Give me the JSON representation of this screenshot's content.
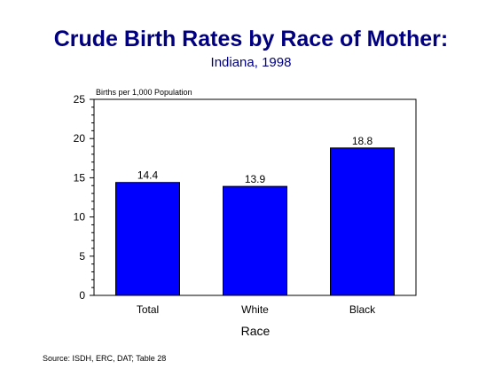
{
  "title": "Crude Birth Rates by Race of Mother:",
  "subtitle": "Indiana, 1998",
  "source": "Source:  ISDH, ERC, DAT; Table 28",
  "colors": {
    "bar": "#0000ff",
    "title": "#000080"
  },
  "chart_data": {
    "type": "bar",
    "categories": [
      "Total",
      "White",
      "Black"
    ],
    "values": [
      14.4,
      13.9,
      18.8
    ],
    "data_labels": [
      "14.4",
      "13.9",
      "18.8"
    ],
    "ylabel": "Births per 1,000 Population",
    "xlabel": "Race",
    "ylim": [
      0,
      25
    ],
    "yticks": [
      0,
      5,
      10,
      15,
      20,
      25
    ],
    "grid": false,
    "legend": "none"
  }
}
